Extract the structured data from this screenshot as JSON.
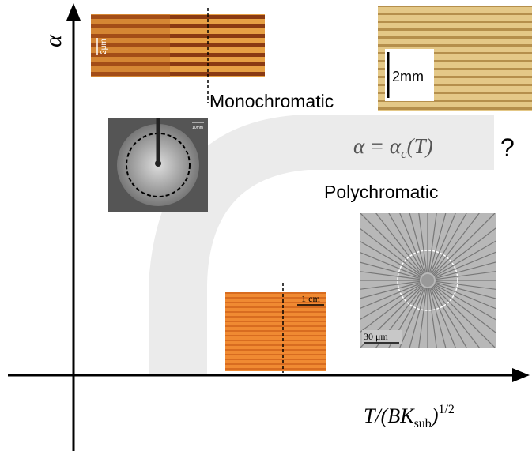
{
  "axes": {
    "y_label": "α",
    "x_label": {
      "base": "T/(BK",
      "sub": "sub",
      "close": ")",
      "sup": "1/2"
    }
  },
  "regions": {
    "mono": "Monochromatic",
    "poly": "Polychromatic"
  },
  "boundary": {
    "lhs": "α = α",
    "sub": "c",
    "rhs": "(T)",
    "question": "?"
  },
  "scale_bars": {
    "top_left": "2μm",
    "top_right": "2mm",
    "circle": "10mm",
    "orange": "1 cm",
    "poly": "30 μm"
  }
}
